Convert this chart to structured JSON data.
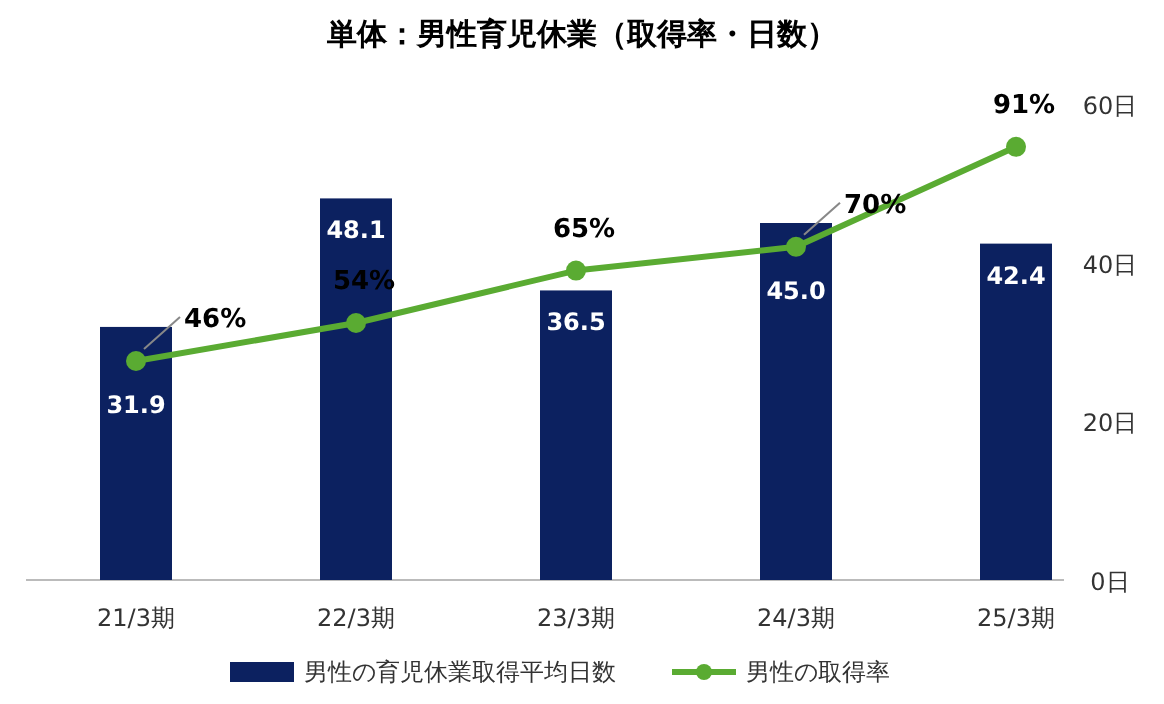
{
  "chart_data": {
    "type": "bar",
    "title": "単体：男性育児休業（取得率・日数）",
    "categories": [
      "21/3期",
      "22/3期",
      "23/3期",
      "24/3期",
      "25/3期"
    ],
    "series": [
      {
        "name": "男性の育児休業取得平均日数",
        "color": "#0c2160",
        "values": [
          31.9,
          48.1,
          36.5,
          45.0,
          42.4
        ],
        "value_labels": [
          "31.9",
          "48.1",
          "36.5",
          "45.0",
          "42.4"
        ]
      },
      {
        "name": "男性の取得率",
        "type": "line",
        "axis": "y2",
        "color": "#5aab32",
        "values": [
          46,
          54,
          65,
          70,
          91
        ],
        "value_labels": [
          "46%",
          "54%",
          "65%",
          "70%",
          "91%"
        ]
      }
    ],
    "ylim": [
      0,
      60
    ],
    "yticks": [
      {
        "value": 0,
        "label": "0日"
      },
      {
        "value": 20,
        "label": "20日"
      },
      {
        "value": 40,
        "label": "40日"
      },
      {
        "value": 60,
        "label": "60日"
      }
    ],
    "tick_labels": [
      "x",
      "y"
    ],
    "marker": "circle",
    "legend": "bottom",
    "grid": false
  }
}
